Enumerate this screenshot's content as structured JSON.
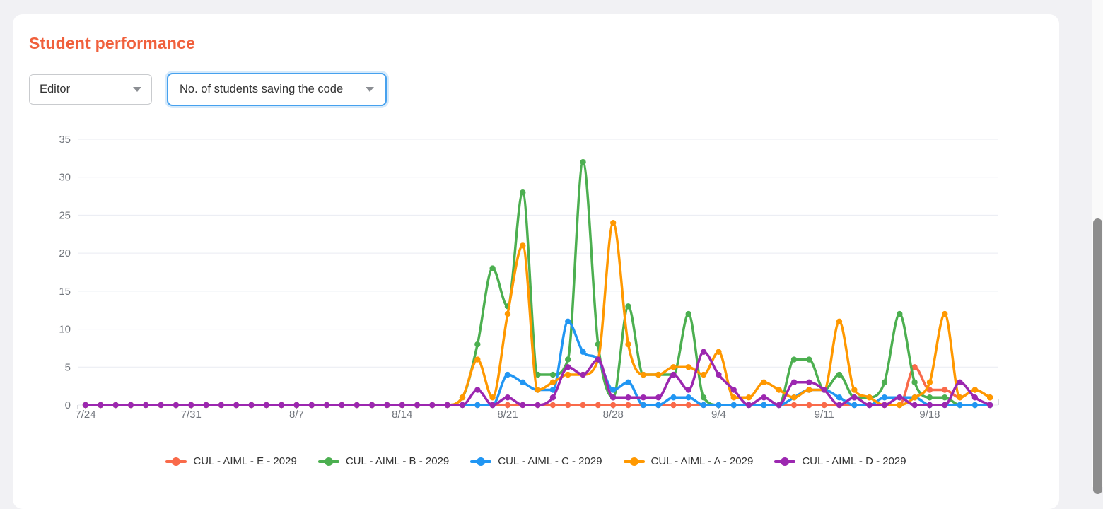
{
  "page": {
    "background": "#f1f1f4",
    "card_background": "#ffffff"
  },
  "header": {
    "title": "Student performance",
    "title_color": "#f0603c"
  },
  "filters": {
    "editor_dropdown": {
      "value": "Editor"
    },
    "metric_dropdown": {
      "value": "No. of students saving the code",
      "active_border_color": "#46a1ee"
    }
  },
  "icons": {
    "dropdown_caret": "triangle-down"
  },
  "chart_data": {
    "type": "line",
    "title": "",
    "xlabel": "",
    "ylabel": "",
    "ylim": [
      0,
      35
    ],
    "y_ticks": [
      0,
      5,
      10,
      15,
      20,
      25,
      30,
      35
    ],
    "grid": true,
    "legend_position": "bottom",
    "interpolation": "monotone",
    "x_tick_labels": [
      "7/24",
      "7/31",
      "8/7",
      "8/14",
      "8/21",
      "8/28",
      "9/4",
      "9/11",
      "9/18"
    ],
    "x": [
      "7/24",
      "7/25",
      "7/26",
      "7/27",
      "7/28",
      "7/29",
      "7/30",
      "7/31",
      "8/1",
      "8/2",
      "8/3",
      "8/4",
      "8/5",
      "8/6",
      "8/7",
      "8/8",
      "8/9",
      "8/10",
      "8/11",
      "8/12",
      "8/13",
      "8/14",
      "8/15",
      "8/16",
      "8/17",
      "8/18",
      "8/19",
      "8/20",
      "8/21",
      "8/22",
      "8/23",
      "8/24",
      "8/25",
      "8/26",
      "8/27",
      "8/28",
      "8/29",
      "8/30",
      "8/31",
      "9/1",
      "9/2",
      "9/3",
      "9/4",
      "9/5",
      "9/6",
      "9/7",
      "9/8",
      "9/9",
      "9/10",
      "9/11",
      "9/12",
      "9/13",
      "9/14",
      "9/15",
      "9/16",
      "9/17",
      "9/18",
      "9/19",
      "9/20",
      "9/21",
      "9/22"
    ],
    "series": [
      {
        "name": "CUL - AIML - E - 2029",
        "color": "#f96a4a",
        "values": [
          0,
          0,
          0,
          0,
          0,
          0,
          0,
          0,
          0,
          0,
          0,
          0,
          0,
          0,
          0,
          0,
          0,
          0,
          0,
          0,
          0,
          0,
          0,
          0,
          0,
          0,
          0,
          0,
          0,
          0,
          0,
          0,
          0,
          0,
          0,
          0,
          0,
          0,
          0,
          0,
          0,
          0,
          0,
          0,
          0,
          0,
          0,
          0,
          0,
          0,
          0,
          0,
          0,
          0,
          0,
          5,
          2,
          2,
          1,
          2,
          1
        ]
      },
      {
        "name": "CUL - AIML - B - 2029",
        "color": "#4caf50",
        "values": [
          0,
          0,
          0,
          0,
          0,
          0,
          0,
          0,
          0,
          0,
          0,
          0,
          0,
          0,
          0,
          0,
          0,
          0,
          0,
          0,
          0,
          0,
          0,
          0,
          0,
          1,
          8,
          18,
          13,
          28,
          4,
          4,
          6,
          32,
          8,
          1,
          13,
          4,
          4,
          4,
          12,
          1,
          0,
          0,
          0,
          0,
          0,
          6,
          6,
          2,
          4,
          1,
          1,
          3,
          12,
          3,
          1,
          1,
          0,
          0,
          0
        ]
      },
      {
        "name": "CUL - AIML - C - 2029",
        "color": "#2196f3",
        "values": [
          0,
          0,
          0,
          0,
          0,
          0,
          0,
          0,
          0,
          0,
          0,
          0,
          0,
          0,
          0,
          0,
          0,
          0,
          0,
          0,
          0,
          0,
          0,
          0,
          0,
          0,
          0,
          0,
          4,
          3,
          2,
          2,
          11,
          7,
          6,
          2,
          3,
          0,
          0,
          1,
          1,
          0,
          0,
          0,
          0,
          0,
          0,
          1,
          2,
          2,
          1,
          0,
          0,
          1,
          1,
          1,
          0,
          0,
          0,
          0,
          0
        ]
      },
      {
        "name": "CUL - AIML - A - 2029",
        "color": "#ff9800",
        "values": [
          0,
          0,
          0,
          0,
          0,
          0,
          0,
          0,
          0,
          0,
          0,
          0,
          0,
          0,
          0,
          0,
          0,
          0,
          0,
          0,
          0,
          0,
          0,
          0,
          0,
          1,
          6,
          1,
          12,
          21,
          2,
          3,
          4,
          4,
          6,
          24,
          8,
          4,
          4,
          5,
          5,
          4,
          7,
          1,
          1,
          3,
          2,
          1,
          2,
          2,
          11,
          2,
          1,
          0,
          0,
          1,
          3,
          12,
          1,
          2,
          1
        ]
      },
      {
        "name": "CUL - AIML - D - 2029",
        "color": "#9c27b0",
        "values": [
          0,
          0,
          0,
          0,
          0,
          0,
          0,
          0,
          0,
          0,
          0,
          0,
          0,
          0,
          0,
          0,
          0,
          0,
          0,
          0,
          0,
          0,
          0,
          0,
          0,
          0,
          2,
          0,
          1,
          0,
          0,
          1,
          5,
          4,
          6,
          1,
          1,
          1,
          1,
          4,
          2,
          7,
          4,
          2,
          0,
          1,
          0,
          3,
          3,
          2,
          0,
          1,
          0,
          0,
          1,
          0,
          0,
          0,
          3,
          1,
          0
        ]
      }
    ],
    "axis_label_color": "#71757c",
    "gridline_color": "#e9ebf2"
  }
}
